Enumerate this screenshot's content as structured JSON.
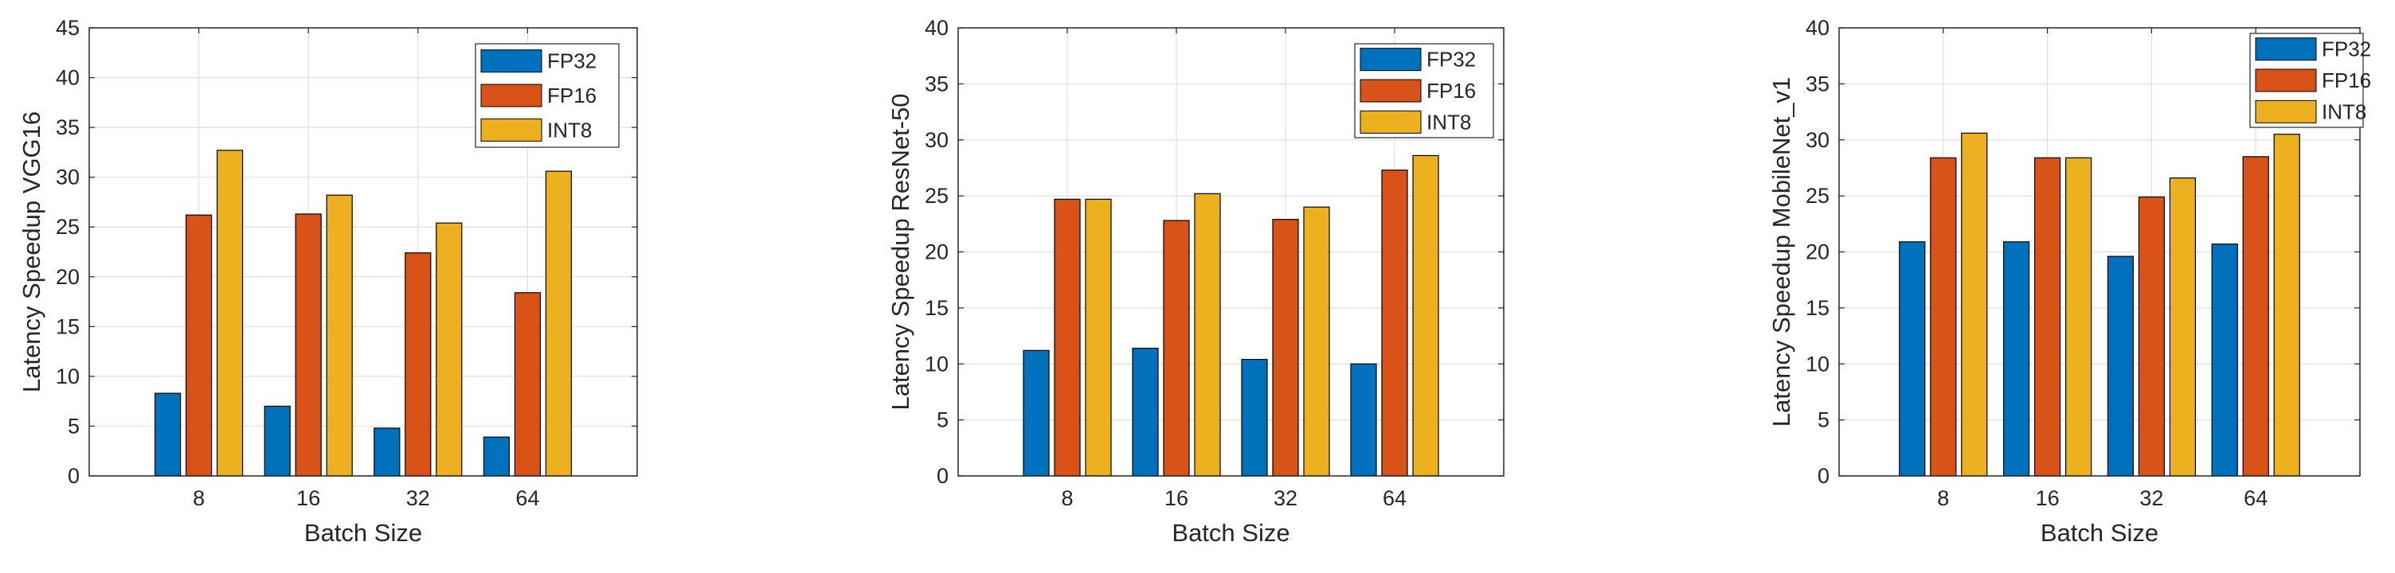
{
  "colors": {
    "FP32": "#0072BD",
    "FP16": "#D95319",
    "INT8": "#EDB120",
    "axis": "#262626",
    "grid": "#DFDFDF"
  },
  "chart_data": [
    {
      "type": "bar",
      "title": "",
      "xlabel": "Batch Size",
      "ylabel": "Latency Speedup VGG16",
      "categories": [
        "8",
        "16",
        "32",
        "64"
      ],
      "ylim": [
        0,
        45
      ],
      "yticks": [
        "0",
        "5",
        "10",
        "15",
        "20",
        "25",
        "30",
        "35",
        "40",
        "45"
      ],
      "grid": true,
      "legend_location": "top-right",
      "series": [
        {
          "name": "FP32",
          "values": [
            8.3,
            7.0,
            4.8,
            3.9
          ]
        },
        {
          "name": "FP16",
          "values": [
            26.2,
            26.3,
            22.4,
            18.4
          ]
        },
        {
          "name": "INT8",
          "values": [
            32.7,
            28.2,
            25.4,
            30.6
          ]
        }
      ]
    },
    {
      "type": "bar",
      "title": "",
      "xlabel": "Batch Size",
      "ylabel": "Latency Speedup ResNet-50",
      "categories": [
        "8",
        "16",
        "32",
        "64"
      ],
      "ylim": [
        0,
        40
      ],
      "yticks": [
        "0",
        "5",
        "10",
        "15",
        "20",
        "25",
        "30",
        "35",
        "40"
      ],
      "grid": true,
      "legend_location": "top-right",
      "series": [
        {
          "name": "FP32",
          "values": [
            11.2,
            11.4,
            10.4,
            10.0
          ]
        },
        {
          "name": "FP16",
          "values": [
            24.7,
            22.8,
            22.9,
            27.3
          ]
        },
        {
          "name": "INT8",
          "values": [
            24.7,
            25.2,
            24.0,
            28.6
          ]
        }
      ]
    },
    {
      "type": "bar",
      "title": "",
      "xlabel": "Batch Size",
      "ylabel": "Latency Speedup MobileNet_v1",
      "categories": [
        "8",
        "16",
        "32",
        "64"
      ],
      "ylim": [
        0,
        40
      ],
      "yticks": [
        "0",
        "5",
        "10",
        "15",
        "20",
        "25",
        "30",
        "35",
        "40"
      ],
      "grid": true,
      "legend_location": "top-right",
      "series": [
        {
          "name": "FP32",
          "values": [
            20.9,
            20.9,
            19.6,
            20.7
          ]
        },
        {
          "name": "FP16",
          "values": [
            28.4,
            28.4,
            24.9,
            28.5
          ]
        },
        {
          "name": "INT8",
          "values": [
            30.6,
            28.4,
            26.6,
            30.5
          ]
        }
      ]
    }
  ]
}
